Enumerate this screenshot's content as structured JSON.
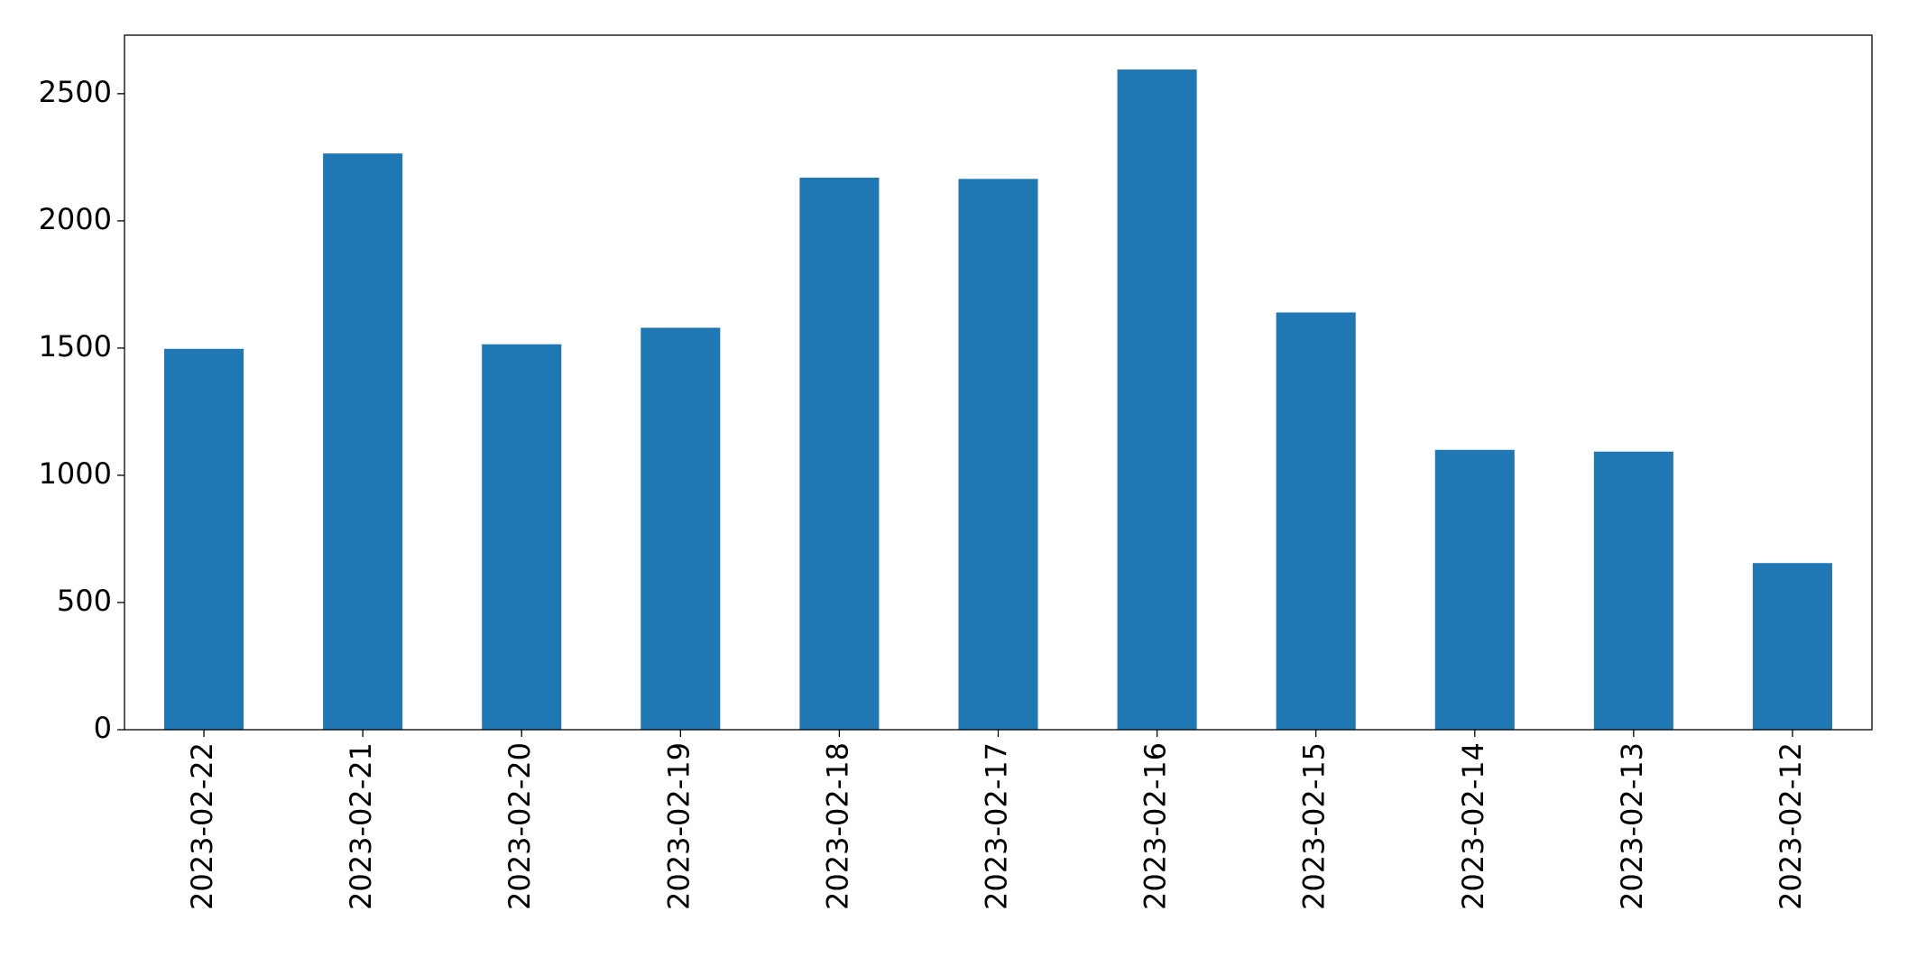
{
  "chart_data": {
    "type": "bar",
    "categories": [
      "2023-02-22",
      "2023-02-21",
      "2023-02-20",
      "2023-02-19",
      "2023-02-18",
      "2023-02-17",
      "2023-02-16",
      "2023-02-15",
      "2023-02-14",
      "2023-02-13",
      "2023-02-12"
    ],
    "values": [
      1497,
      2265,
      1515,
      1580,
      2170,
      2165,
      2595,
      1640,
      1100,
      1093,
      655
    ],
    "color": "#1f77b4",
    "ylim": [
      0,
      2730
    ],
    "yticks": [
      0,
      500,
      1000,
      1500,
      2000,
      2500
    ],
    "grid": false
  }
}
